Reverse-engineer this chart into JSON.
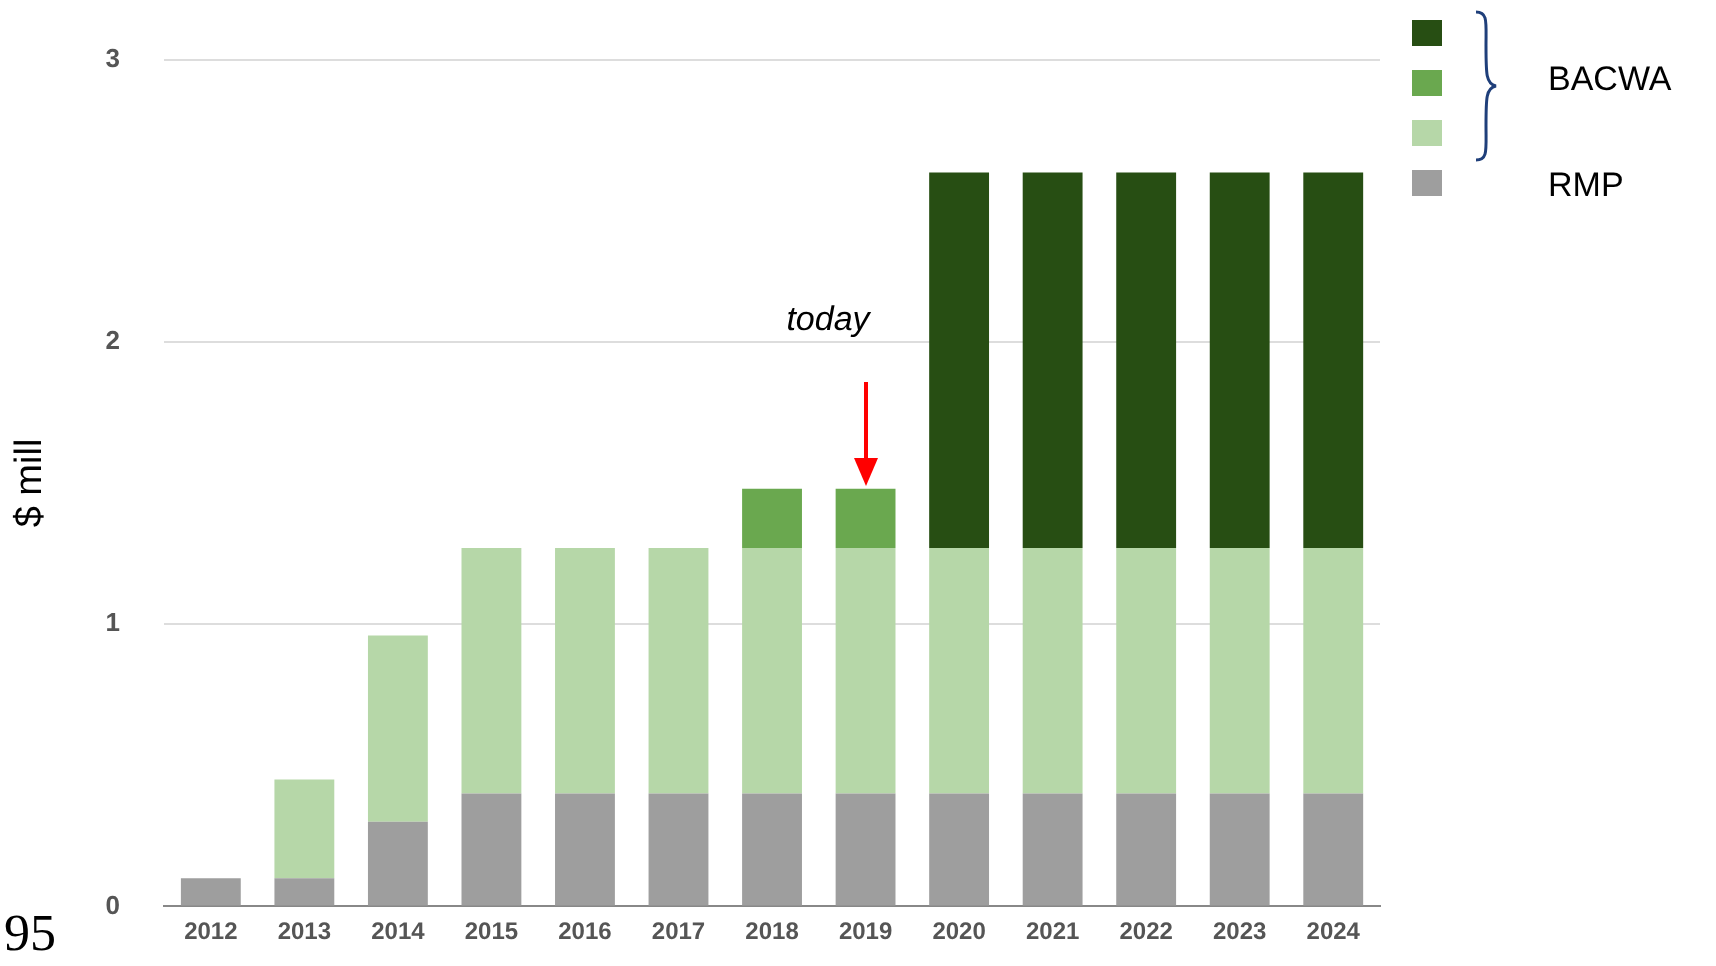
{
  "chart_data": {
    "type": "bar",
    "stacked": true,
    "ylabel": "$ mill",
    "categories": [
      "2012",
      "2013",
      "2014",
      "2015",
      "2016",
      "2017",
      "2018",
      "2019",
      "2020",
      "2021",
      "2022",
      "2023",
      "2024"
    ],
    "series": [
      {
        "name": "RMP",
        "color": "#9e9e9e",
        "values": [
          0.1,
          0.1,
          0.3,
          0.4,
          0.4,
          0.4,
          0.4,
          0.4,
          0.4,
          0.4,
          0.4,
          0.4,
          0.4
        ]
      },
      {
        "color": "#b6d7a8",
        "values": [
          0,
          0.35,
          0.66,
          0.87,
          0.87,
          0.87,
          0.87,
          0.87,
          0.87,
          0.87,
          0.87,
          0.87,
          0.87
        ]
      },
      {
        "name": "BACWA",
        "color": "#6aa84f",
        "values": [
          0,
          0,
          0,
          0,
          0,
          0,
          0.21,
          0.21,
          0,
          0,
          0,
          0,
          0
        ]
      },
      {
        "color": "#274e13",
        "values": [
          0,
          0,
          0,
          0,
          0,
          0,
          0,
          0,
          1.33,
          1.33,
          1.33,
          1.33,
          1.33
        ]
      }
    ],
    "ylim": [
      0,
      3
    ],
    "yticks": [
      0,
      1,
      2,
      3
    ],
    "grid": "y",
    "legend": "top right",
    "annotations": [
      "today",
      "95"
    ]
  }
}
